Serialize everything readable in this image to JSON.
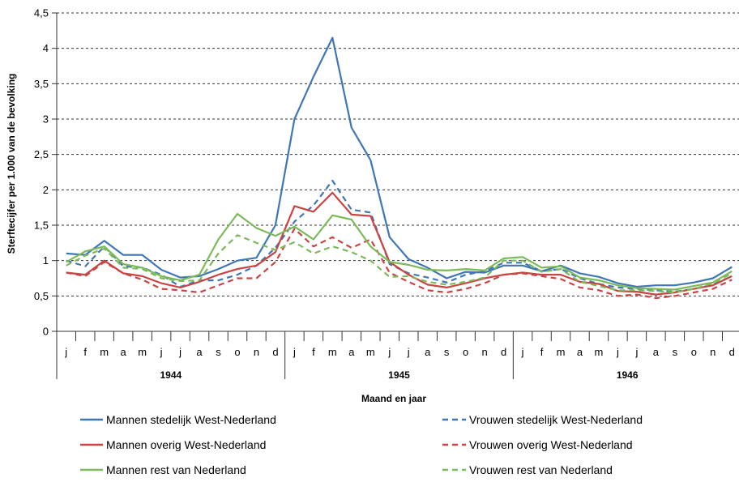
{
  "chart_data": {
    "type": "line",
    "title": "",
    "xlabel": "Maand en jaar",
    "ylabel": "Sterftecijfer per 1.000 van de bevolking",
    "ylim": [
      0,
      4.5
    ],
    "yticks": [
      "0",
      "0,5",
      "1",
      "1,5",
      "2",
      "2,5",
      "3",
      "3,5",
      "4",
      "4,5"
    ],
    "grid": "horizontal dashed",
    "legend_position": "bottom",
    "months": [
      "j",
      "f",
      "m",
      "a",
      "m",
      "j",
      "j",
      "a",
      "s",
      "o",
      "n",
      "d"
    ],
    "years": [
      "1944",
      "1945",
      "1946"
    ],
    "series": [
      {
        "name": "Mannen stedelijk West-Nederland",
        "color": "#3f76b5",
        "dash": "solid",
        "values": [
          1.1,
          1.08,
          1.28,
          1.08,
          1.08,
          0.87,
          0.76,
          0.78,
          0.88,
          1.0,
          1.04,
          1.5,
          3.0,
          3.6,
          4.15,
          2.88,
          2.42,
          1.33,
          1.02,
          0.9,
          0.75,
          0.84,
          0.83,
          0.93,
          0.93,
          0.85,
          0.93,
          0.82,
          0.77,
          0.68,
          0.63,
          0.65,
          0.65,
          0.69,
          0.75,
          0.91
        ]
      },
      {
        "name": "Vrouwen stedelijk West-Nederland",
        "color": "#3f76b5",
        "dash": "dashed",
        "values": [
          1.0,
          0.92,
          1.2,
          0.92,
          0.9,
          0.8,
          0.63,
          0.72,
          0.72,
          0.8,
          0.93,
          1.18,
          1.55,
          1.78,
          2.13,
          1.72,
          1.68,
          0.95,
          0.82,
          0.76,
          0.69,
          0.8,
          0.85,
          0.97,
          0.97,
          0.85,
          0.88,
          0.75,
          0.67,
          0.62,
          0.6,
          0.58,
          0.56,
          0.6,
          0.66,
          0.78
        ]
      },
      {
        "name": "Mannen overig West-Nederland",
        "color": "#c94443",
        "dash": "solid",
        "values": [
          0.83,
          0.8,
          1.0,
          0.82,
          0.78,
          0.68,
          0.62,
          0.7,
          0.8,
          0.88,
          0.93,
          1.12,
          1.77,
          1.69,
          1.96,
          1.65,
          1.63,
          0.98,
          0.8,
          0.66,
          0.62,
          0.68,
          0.75,
          0.8,
          0.83,
          0.8,
          0.8,
          0.7,
          0.67,
          0.57,
          0.56,
          0.52,
          0.55,
          0.6,
          0.65,
          0.78
        ]
      },
      {
        "name": "Vrouwen overig West-Nederland",
        "color": "#c94443",
        "dash": "dashed",
        "values": [
          0.83,
          0.78,
          0.98,
          0.82,
          0.73,
          0.6,
          0.58,
          0.55,
          0.65,
          0.75,
          0.75,
          0.98,
          1.45,
          1.2,
          1.33,
          1.18,
          1.3,
          0.83,
          0.7,
          0.58,
          0.55,
          0.6,
          0.68,
          0.8,
          0.82,
          0.78,
          0.74,
          0.62,
          0.58,
          0.5,
          0.52,
          0.47,
          0.5,
          0.55,
          0.6,
          0.73
        ]
      },
      {
        "name": "Mannen rest van Nederland",
        "color": "#7cba59",
        "dash": "solid",
        "values": [
          0.98,
          1.13,
          1.2,
          0.95,
          0.9,
          0.78,
          0.72,
          0.8,
          1.3,
          1.66,
          1.46,
          1.35,
          1.48,
          1.3,
          1.64,
          1.58,
          1.2,
          0.98,
          0.94,
          0.87,
          0.86,
          0.88,
          0.86,
          1.03,
          1.05,
          0.9,
          0.92,
          0.76,
          0.72,
          0.65,
          0.61,
          0.6,
          0.59,
          0.64,
          0.69,
          0.85
        ]
      },
      {
        "name": "Vrouwen rest van Nederland",
        "color": "#7cba59",
        "dash": "dashed",
        "values": [
          0.93,
          1.07,
          1.17,
          0.9,
          0.88,
          0.75,
          0.71,
          0.72,
          1.1,
          1.36,
          1.25,
          1.15,
          1.26,
          1.1,
          1.2,
          1.12,
          1.0,
          0.77,
          0.78,
          0.7,
          0.66,
          0.7,
          0.76,
          1.0,
          1.0,
          0.84,
          0.88,
          0.7,
          0.64,
          0.58,
          0.58,
          0.57,
          0.55,
          0.6,
          0.68,
          0.82
        ]
      }
    ]
  }
}
